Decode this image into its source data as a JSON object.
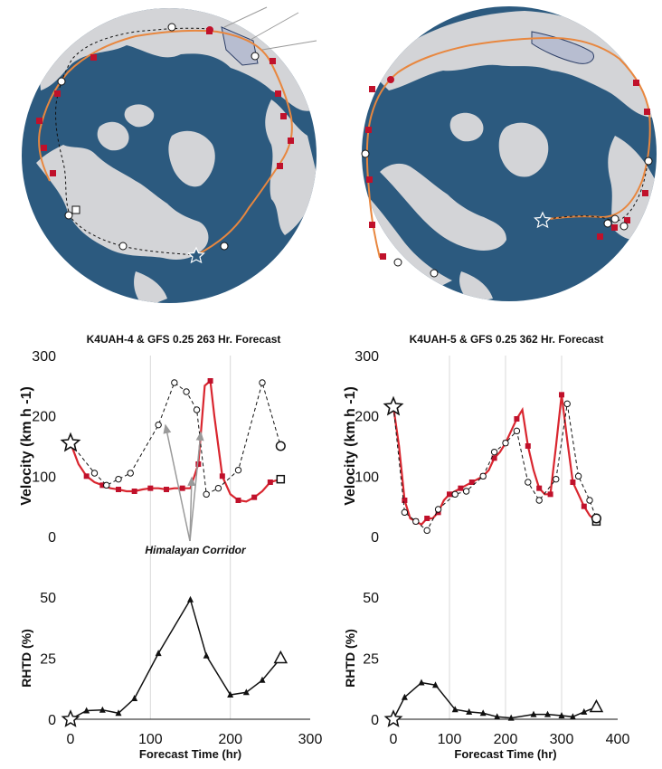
{
  "colors": {
    "ocean": "#2c5a7f",
    "land": "#d3d4d7",
    "obs": "#d9262f",
    "gfs_line": "#e8873f",
    "marker": "#c0112b",
    "arrow": "#9a9a9a",
    "gridline": "#d9d9d9"
  },
  "annotations": {
    "himalayan": "Himalayan Corridor"
  },
  "chart_data": [
    {
      "type": "line",
      "title": "K4UAH-4 & GFS 0.25 263 Hr. Forecast",
      "panels": [
        {
          "ylabel": "Velocity (km h -1)",
          "ylim": [
            0,
            300
          ],
          "yticks": [
            "0",
            "100",
            "200",
            "300"
          ],
          "series": [
            {
              "role": "observed",
              "x": [
                0,
                10,
                20,
                30,
                40,
                50,
                60,
                70,
                80,
                90,
                100,
                110,
                120,
                130,
                140,
                150,
                160,
                168,
                175,
                180,
                190,
                200,
                210,
                220,
                230,
                240,
                250,
                263
              ],
              "y": [
                155,
                120,
                100,
                90,
                85,
                80,
                78,
                75,
                75,
                78,
                80,
                80,
                78,
                80,
                80,
                80,
                120,
                250,
                258,
                200,
                100,
                70,
                60,
                58,
                65,
                75,
                90,
                95
              ]
            },
            {
              "role": "forecast",
              "x": [
                0,
                30,
                45,
                60,
                75,
                110,
                130,
                145,
                158,
                170,
                185,
                210,
                240,
                263
              ],
              "y": [
                155,
                105,
                85,
                95,
                105,
                185,
                255,
                240,
                210,
                70,
                80,
                110,
                255,
                150
              ]
            }
          ]
        },
        {
          "ylabel": "RHTD (%)",
          "ylim": [
            0,
            50
          ],
          "yticks": [
            "0",
            "25",
            "50"
          ],
          "series": [
            {
              "role": "rhtd",
              "x": [
                0,
                20,
                40,
                60,
                80,
                110,
                150,
                170,
                200,
                220,
                240,
                263
              ],
              "y": [
                0,
                3.5,
                3.8,
                2.5,
                8.5,
                27,
                49,
                26,
                10,
                11,
                16,
                25
              ]
            }
          ]
        }
      ],
      "xlabel": "Forecast Time (hr)",
      "xlim": [
        0,
        300
      ],
      "xticks": [
        "0",
        "100",
        "200",
        "300"
      ]
    },
    {
      "type": "line",
      "title": "K4UAH-5 & GFS 0.25 362 Hr. Forecast",
      "panels": [
        {
          "ylabel": "Velocity (km h -1)",
          "ylim": [
            0,
            300
          ],
          "yticks": [
            "0",
            "100",
            "200",
            "300"
          ],
          "series": [
            {
              "role": "observed",
              "x": [
                0,
                10,
                20,
                30,
                40,
                50,
                60,
                70,
                80,
                90,
                100,
                110,
                120,
                130,
                140,
                150,
                160,
                170,
                180,
                190,
                200,
                210,
                220,
                230,
                240,
                250,
                260,
                270,
                280,
                290,
                300,
                310,
                320,
                330,
                340,
                350,
                362
              ],
              "y": [
                215,
                150,
                60,
                30,
                25,
                20,
                30,
                30,
                40,
                60,
                70,
                75,
                80,
                85,
                90,
                95,
                100,
                110,
                130,
                140,
                155,
                175,
                195,
                210,
                150,
                110,
                80,
                70,
                70,
                150,
                235,
                160,
                90,
                70,
                50,
                35,
                25
              ]
            },
            {
              "role": "forecast",
              "x": [
                0,
                20,
                40,
                60,
                80,
                110,
                130,
                160,
                180,
                200,
                220,
                240,
                260,
                290,
                310,
                330,
                350,
                362
              ],
              "y": [
                215,
                40,
                25,
                10,
                45,
                70,
                75,
                100,
                140,
                155,
                175,
                90,
                60,
                95,
                220,
                100,
                60,
                30
              ]
            }
          ]
        },
        {
          "ylabel": "RHTD (%)",
          "ylim": [
            0,
            50
          ],
          "yticks": [
            "0",
            "25",
            "50"
          ],
          "series": [
            {
              "role": "rhtd",
              "x": [
                0,
                20,
                50,
                75,
                110,
                135,
                160,
                185,
                210,
                250,
                275,
                300,
                320,
                340,
                362
              ],
              "y": [
                0,
                9,
                15,
                14,
                4,
                3,
                2.5,
                1,
                0.5,
                2,
                2,
                1.5,
                1,
                3,
                5
              ]
            }
          ]
        }
      ],
      "xlabel": "Forecast Time (hr)",
      "xlim": [
        0,
        400
      ],
      "xticks": [
        "0",
        "100",
        "200",
        "300",
        "400"
      ]
    }
  ]
}
